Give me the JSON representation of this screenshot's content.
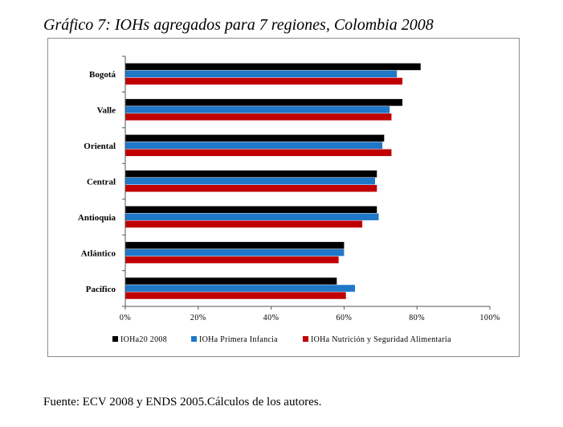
{
  "page": {
    "title": "Gráfico 7: IOHs agregados para 7 regiones, Colombia 2008",
    "source": "Fuente: ECV 2008 y ENDS 2005.Cálculos de los autores."
  },
  "chart_data": {
    "type": "bar",
    "orientation": "horizontal",
    "title": "Gráfico 7: IOHs agregados para 7 regiones, Colombia 2008",
    "categories": [
      "Bogotá",
      "Valle",
      "Oriental",
      "Central",
      "Antioquia",
      "Atlántico",
      "Pacífico"
    ],
    "series": [
      {
        "name": "IOHa20 2008",
        "color": "#000000",
        "values": [
          81,
          76,
          71,
          69,
          69,
          60,
          58
        ]
      },
      {
        "name": "IOHa Primera Infancia",
        "color": "#1f77c8",
        "values": [
          74.5,
          72.5,
          70.5,
          68.5,
          69.5,
          60,
          63
        ]
      },
      {
        "name": "IOHa Nutrición y Seguridad Alimentaria",
        "color": "#c00000",
        "values": [
          76,
          73,
          73,
          69,
          65,
          58.5,
          60.5
        ]
      }
    ],
    "xlim": [
      0,
      100
    ],
    "xticks": [
      "0%",
      "20%",
      "40%",
      "60%",
      "80%",
      "100%"
    ],
    "xticks_values": [
      0,
      20,
      40,
      60,
      80,
      100
    ],
    "grid": false,
    "legend_position": "bottom"
  }
}
